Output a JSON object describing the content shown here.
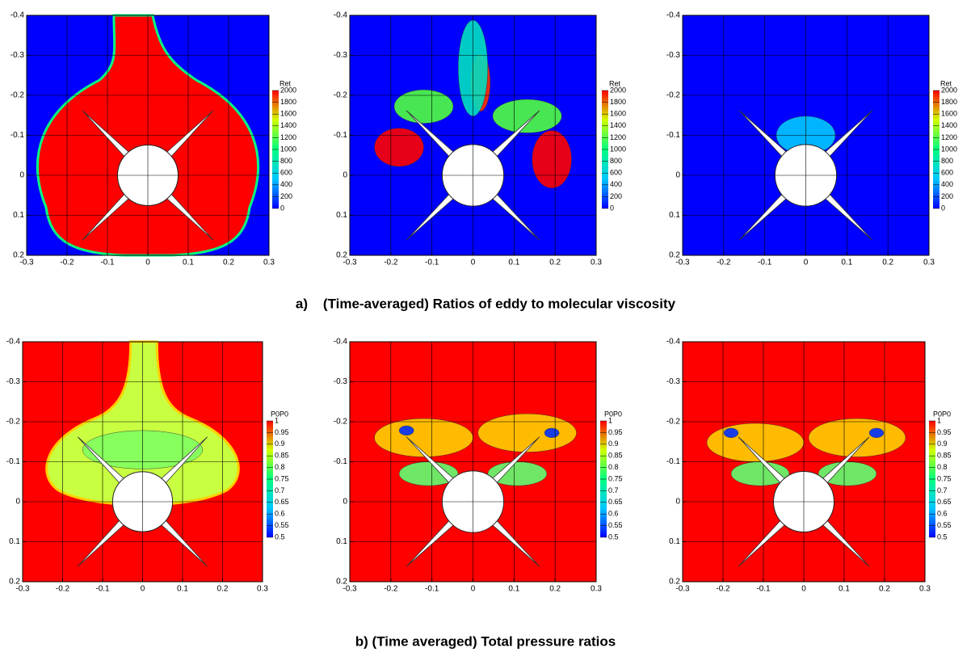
{
  "chart_data": [
    {
      "type": "contour",
      "xlim": [
        -0.3,
        0.3
      ],
      "ylim": [
        0.2,
        -0.4
      ],
      "xticks": [
        -0.3,
        -0.2,
        -0.1,
        0,
        0.1,
        0.2,
        0.3
      ],
      "yticks": [
        -0.4,
        -0.3,
        -0.2,
        -0.1,
        0,
        0.1,
        0.2
      ],
      "grid": true,
      "colorbar": {
        "label": "Ret",
        "clim": [
          0,
          2000
        ],
        "ticks": [
          2000,
          1800,
          1600,
          1400,
          1200,
          1000,
          800,
          600,
          400,
          200,
          0
        ],
        "colormap": [
          "#0000ff",
          "#00c8ff",
          "#00ff80",
          "#d0ff00",
          "#ff0000"
        ]
      }
    },
    {
      "type": "contour",
      "xlim": [
        -0.3,
        0.3
      ],
      "ylim": [
        0.2,
        -0.4
      ],
      "xticks": [
        -0.3,
        -0.2,
        -0.1,
        0,
        0.1,
        0.2,
        0.3
      ],
      "yticks": [
        -0.4,
        -0.3,
        -0.2,
        -0.1,
        0,
        0.1,
        0.2
      ],
      "grid": true,
      "colorbar": {
        "label": "Ret",
        "clim": [
          0,
          2000
        ],
        "ticks": [
          2000,
          1800,
          1600,
          1400,
          1200,
          1000,
          800,
          600,
          400,
          200,
          0
        ],
        "colormap": [
          "#0000ff",
          "#00c8ff",
          "#00ff80",
          "#d0ff00",
          "#ff0000"
        ]
      }
    },
    {
      "type": "contour",
      "xlim": [
        -0.3,
        0.3
      ],
      "ylim": [
        0.2,
        -0.4
      ],
      "xticks": [
        -0.3,
        -0.2,
        -0.1,
        0,
        0.1,
        0.2,
        0.3
      ],
      "yticks": [
        -0.4,
        -0.3,
        -0.2,
        -0.1,
        0,
        0.1,
        0.2
      ],
      "grid": true,
      "colorbar": {
        "label": "Ret",
        "clim": [
          0,
          2000
        ],
        "ticks": [
          2000,
          1800,
          1600,
          1400,
          1200,
          1000,
          800,
          600,
          400,
          200,
          0
        ],
        "colormap": [
          "#0000ff",
          "#00c8ff",
          "#00ff80",
          "#d0ff00",
          "#ff0000"
        ]
      }
    },
    {
      "type": "contour",
      "xlim": [
        -0.3,
        0.3
      ],
      "ylim": [
        0.2,
        -0.4
      ],
      "xticks": [
        -0.3,
        -0.2,
        -0.1,
        0,
        0.1,
        0.2,
        0.3
      ],
      "yticks": [
        -0.4,
        -0.3,
        -0.2,
        -0.1,
        0,
        0.1,
        0.2
      ],
      "grid": true,
      "colorbar": {
        "label": "P0P0",
        "clim": [
          0.5,
          1
        ],
        "ticks": [
          1,
          0.95,
          0.9,
          0.85,
          0.8,
          0.75,
          0.7,
          0.65,
          0.6,
          0.55,
          0.5
        ],
        "colormap": [
          "#0000ff",
          "#00c8ff",
          "#00ff80",
          "#d0ff00",
          "#ff0000"
        ]
      }
    },
    {
      "type": "contour",
      "xlim": [
        -0.3,
        0.3
      ],
      "ylim": [
        0.2,
        -0.4
      ],
      "xticks": [
        -0.3,
        -0.2,
        -0.1,
        0,
        0.1,
        0.2,
        0.3
      ],
      "yticks": [
        -0.4,
        -0.3,
        -0.2,
        -0.1,
        0,
        0.1,
        0.2
      ],
      "grid": true,
      "colorbar": {
        "label": "P0P0",
        "clim": [
          0.5,
          1
        ],
        "ticks": [
          1,
          0.95,
          0.9,
          0.85,
          0.8,
          0.75,
          0.7,
          0.65,
          0.6,
          0.55,
          0.5
        ],
        "colormap": [
          "#0000ff",
          "#00c8ff",
          "#00ff80",
          "#d0ff00",
          "#ff0000"
        ]
      }
    },
    {
      "type": "contour",
      "xlim": [
        -0.3,
        0.3
      ],
      "ylim": [
        0.2,
        -0.4
      ],
      "xticks": [
        -0.3,
        -0.2,
        -0.1,
        0,
        0.1,
        0.2,
        0.3
      ],
      "yticks": [
        -0.4,
        -0.3,
        -0.2,
        -0.1,
        0,
        0.1,
        0.2
      ],
      "grid": true,
      "colorbar": {
        "label": "P0P0",
        "clim": [
          0.5,
          1
        ],
        "ticks": [
          1,
          0.95,
          0.9,
          0.85,
          0.8,
          0.75,
          0.7,
          0.65,
          0.6,
          0.55,
          0.5
        ],
        "colormap": [
          "#0000ff",
          "#00c8ff",
          "#00ff80",
          "#d0ff00",
          "#ff0000"
        ]
      }
    }
  ],
  "captions": [
    "a)    (Time-averaged) Ratios of eddy to molecular viscosity",
    "b) (Time averaged) Total pressure ratios"
  ]
}
